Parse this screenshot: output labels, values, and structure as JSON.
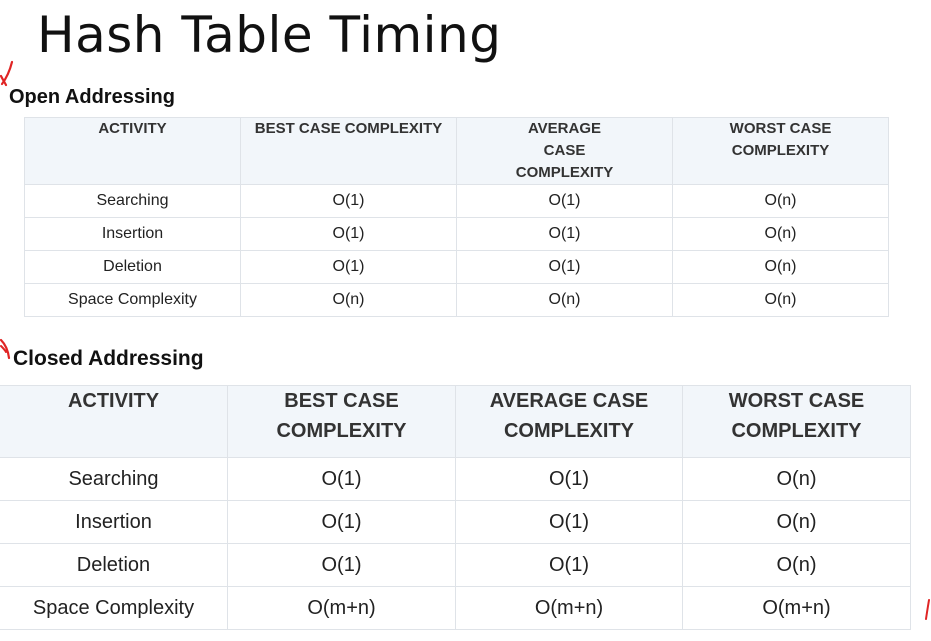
{
  "title": "Hash Table Timing",
  "annotation_color": "#e02424",
  "sections": [
    {
      "heading": "Open Addressing",
      "headers": [
        "ACTIVITY",
        "BEST CASE COMPLEXITY",
        "AVERAGE CASE COMPLEXITY",
        "WORST CASE COMPLEXITY"
      ],
      "rows": [
        [
          "Searching",
          "O(1)",
          "O(1)",
          "O(n)"
        ],
        [
          "Insertion",
          "O(1)",
          "O(1)",
          "O(n)"
        ],
        [
          "Deletion",
          "O(1)",
          "O(1)",
          "O(n)"
        ],
        [
          "Space Complexity",
          "O(n)",
          "O(n)",
          "O(n)"
        ]
      ]
    },
    {
      "heading": "Closed Addressing",
      "headers": [
        "ACTIVITY",
        "BEST CASE COMPLEXITY",
        "AVERAGE CASE COMPLEXITY",
        "WORST CASE COMPLEXITY"
      ],
      "rows": [
        [
          "Searching",
          "O(1)",
          "O(1)",
          "O(n)"
        ],
        [
          "Insertion",
          "O(1)",
          "O(1)",
          "O(n)"
        ],
        [
          "Deletion",
          "O(1)",
          "O(1)",
          "O(n)"
        ],
        [
          "Space Complexity",
          "O(m+n)",
          "O(m+n)",
          "O(m+n)"
        ]
      ]
    }
  ]
}
